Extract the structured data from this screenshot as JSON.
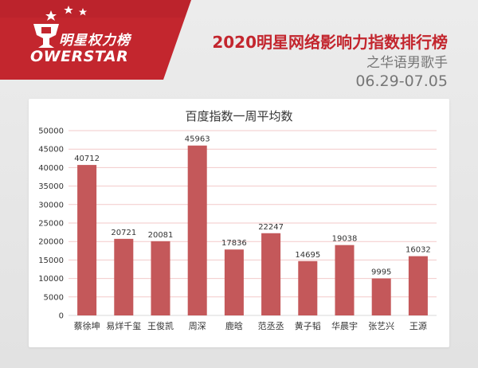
{
  "brand": {
    "name_cn": "明星权力榜",
    "name_en": "OWERSTAR",
    "accent_color": "#c3262e"
  },
  "header": {
    "title": "2020明星网络影响力指数排行榜",
    "subtitle": "之华语男歌手",
    "date_range": "06.29-07.05"
  },
  "chart_data": {
    "type": "bar",
    "title": "百度指数一周平均数",
    "categories": [
      "蔡徐坤",
      "易烊千玺",
      "王俊凯",
      "周深",
      "鹿晗",
      "范丞丞",
      "黄子韬",
      "华晨宇",
      "张艺兴",
      "王源"
    ],
    "values": [
      40712,
      20721,
      20081,
      45963,
      17836,
      22247,
      14695,
      19038,
      9995,
      16032
    ],
    "ylim": [
      0,
      50000
    ],
    "yticks": [
      0,
      5000,
      10000,
      15000,
      20000,
      25000,
      30000,
      35000,
      40000,
      45000,
      50000
    ],
    "xlabel": "",
    "ylabel": "",
    "grid": true,
    "bar_color": "#c4585a",
    "grid_color": "#f3c9c9"
  }
}
